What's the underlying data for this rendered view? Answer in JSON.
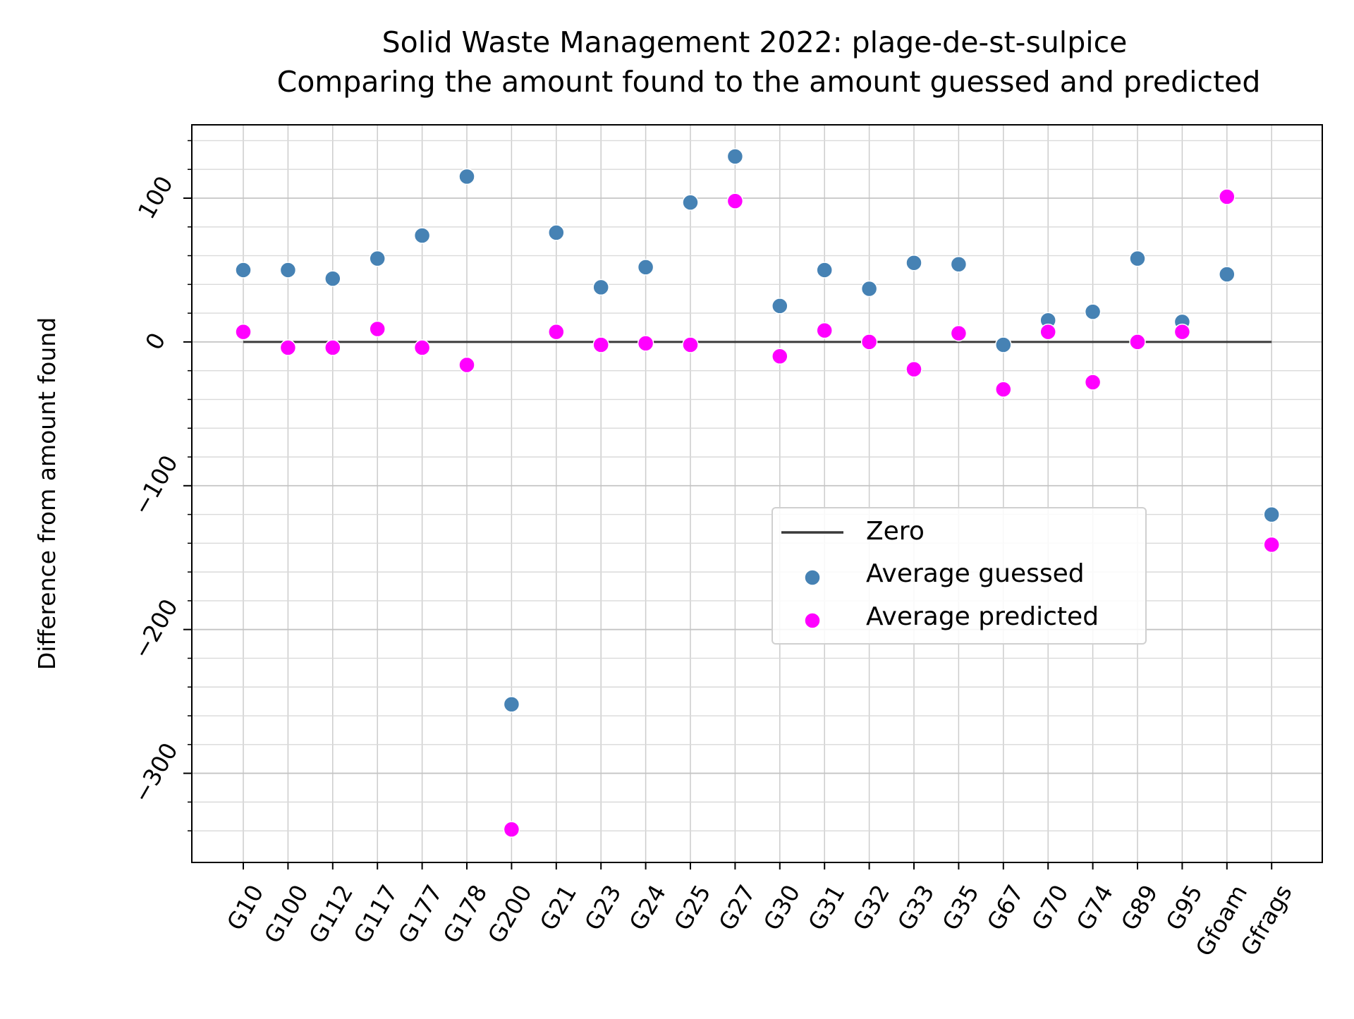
{
  "chart_data": {
    "type": "scatter",
    "title": "Solid Waste Management 2022: plage-de-st-sulpice",
    "subtitle": "Comparing the amount found to the amount guessed and predicted",
    "xlabel": "",
    "ylabel": "Difference from amount found",
    "categories": [
      "G10",
      "G100",
      "G112",
      "G117",
      "G177",
      "G178",
      "G200",
      "G21",
      "G23",
      "G24",
      "G25",
      "G27",
      "G30",
      "G31",
      "G32",
      "G33",
      "G35",
      "G67",
      "G70",
      "G74",
      "G89",
      "G95",
      "Gfoam",
      "Gfrags"
    ],
    "ylim": [
      -362,
      151
    ],
    "yticks": [
      -300,
      -200,
      -100,
      0,
      100
    ],
    "ytick_labels": [
      "−300",
      "−200",
      "−100",
      "0",
      "100"
    ],
    "grid": true,
    "legend_position": "center-right",
    "series": [
      {
        "name": "Zero",
        "kind": "line",
        "color": "#3a3a3a",
        "values": [
          0,
          0,
          0,
          0,
          0,
          0,
          0,
          0,
          0,
          0,
          0,
          0,
          0,
          0,
          0,
          0,
          0,
          0,
          0,
          0,
          0,
          0,
          0,
          0
        ]
      },
      {
        "name": "Average guessed",
        "kind": "scatter",
        "color": "#4682b4",
        "values": [
          50,
          50,
          44,
          58,
          74,
          115,
          -252,
          76,
          38,
          52,
          97,
          129,
          25,
          50,
          37,
          55,
          54,
          -2,
          15,
          21,
          58,
          14,
          47,
          -120
        ]
      },
      {
        "name": "Average predicted",
        "kind": "scatter",
        "color": "#ff00ff",
        "values": [
          7,
          -4,
          -4,
          9,
          -4,
          -16,
          -339,
          7,
          -2,
          -1,
          -2,
          98,
          -10,
          8,
          0,
          -19,
          6,
          -33,
          7,
          -28,
          0,
          7,
          101,
          -141
        ]
      }
    ]
  }
}
